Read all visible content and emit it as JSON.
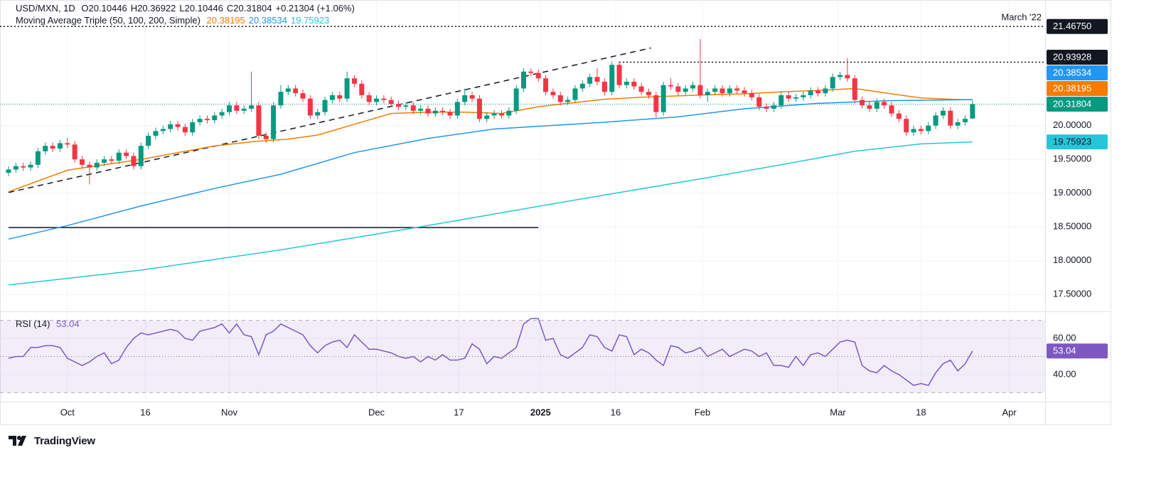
{
  "chart_data": [
    {
      "type": "candlestick",
      "symbol": "USD/MXN, 1D",
      "ohlc_keys": [
        "O",
        "H",
        "L",
        "C"
      ],
      "change": "+0.21304 (+1.06%)",
      "indicator": "Moving Average Triple (50, 100, 200, Simple)",
      "x": [
        0,
        1,
        2,
        3,
        4,
        5,
        6,
        7,
        8,
        9,
        10,
        11,
        12,
        13,
        14,
        15,
        16,
        17,
        18,
        19,
        20,
        21,
        22,
        23,
        24,
        25,
        26,
        27,
        28,
        29,
        30,
        31,
        32,
        33,
        34,
        35,
        36,
        37,
        38,
        39,
        40,
        41,
        42,
        43,
        44,
        45,
        46,
        47,
        48,
        49,
        50,
        51,
        52,
        53,
        54,
        55,
        56,
        57,
        58,
        59,
        60,
        61,
        62,
        63,
        64,
        65,
        66,
        67,
        68,
        69,
        70,
        71,
        72,
        73,
        74,
        75,
        76,
        77,
        78,
        79,
        80,
        81,
        82,
        83,
        84,
        85,
        86,
        87,
        88,
        89,
        90,
        91,
        92,
        93,
        94,
        95,
        96,
        97,
        98,
        99,
        100,
        101,
        102,
        103,
        104,
        105,
        106,
        107,
        108,
        109,
        110,
        111,
        112,
        113,
        114,
        115,
        116,
        117,
        118,
        119,
        120,
        121,
        122,
        123,
        124,
        125,
        126,
        127,
        128,
        129,
        130,
        131
      ],
      "open": [
        19.3,
        19.35,
        19.4,
        19.38,
        19.42,
        19.62,
        19.7,
        19.66,
        19.74,
        19.72,
        19.5,
        19.42,
        19.38,
        19.45,
        19.5,
        19.48,
        19.6,
        19.55,
        19.4,
        19.7,
        19.85,
        19.92,
        19.95,
        20.02,
        19.98,
        19.9,
        20.05,
        20.1,
        20.08,
        20.15,
        20.2,
        20.3,
        20.22,
        20.25,
        20.3,
        19.85,
        19.8,
        20.3,
        20.5,
        20.55,
        20.48,
        20.4,
        20.15,
        20.2,
        20.38,
        20.45,
        20.4,
        20.7,
        20.62,
        20.45,
        20.35,
        20.4,
        20.38,
        20.32,
        20.28,
        20.3,
        20.22,
        20.25,
        20.18,
        20.22,
        20.2,
        20.15,
        20.35,
        20.45,
        20.4,
        20.1,
        20.15,
        20.18,
        20.15,
        20.22,
        20.55,
        20.8,
        20.78,
        20.7,
        20.5,
        20.45,
        20.35,
        20.38,
        20.55,
        20.62,
        20.72,
        20.65,
        20.5,
        20.9,
        20.6,
        20.65,
        20.58,
        20.5,
        20.45,
        20.2,
        20.6,
        20.58,
        20.5,
        20.55,
        20.6,
        20.45,
        20.5,
        20.55,
        20.48,
        20.55,
        20.52,
        20.48,
        20.42,
        20.28,
        20.25,
        20.3,
        20.45,
        20.4,
        20.42,
        20.45,
        20.52,
        20.48,
        20.55,
        20.72,
        20.75,
        20.7,
        20.38,
        20.3,
        20.25,
        20.35,
        20.3,
        20.18,
        20.1,
        19.9,
        19.95,
        19.92,
        20.0,
        20.15,
        20.22,
        20.0,
        20.05,
        20.10446
      ],
      "high": [
        19.4,
        19.45,
        19.45,
        19.47,
        19.67,
        19.75,
        19.75,
        19.79,
        19.82,
        19.77,
        19.55,
        19.47,
        19.5,
        19.55,
        19.55,
        19.65,
        19.65,
        19.6,
        19.75,
        19.9,
        19.97,
        20.0,
        20.07,
        20.07,
        20.03,
        20.1,
        20.15,
        20.15,
        20.2,
        20.25,
        20.35,
        20.35,
        20.3,
        20.8,
        20.35,
        19.9,
        20.35,
        20.6,
        20.6,
        20.6,
        20.53,
        20.45,
        20.25,
        20.43,
        20.5,
        20.5,
        20.8,
        20.75,
        20.67,
        20.5,
        20.45,
        20.45,
        20.43,
        20.37,
        20.35,
        20.35,
        20.3,
        20.3,
        20.27,
        20.27,
        20.25,
        20.4,
        20.55,
        20.5,
        20.45,
        20.2,
        20.23,
        20.23,
        20.27,
        20.6,
        20.85,
        20.85,
        20.83,
        20.75,
        20.55,
        20.5,
        20.43,
        20.6,
        20.67,
        20.77,
        20.85,
        20.7,
        20.95,
        20.95,
        20.7,
        20.7,
        20.63,
        20.55,
        20.5,
        20.65,
        20.7,
        20.63,
        20.6,
        20.65,
        21.28,
        20.55,
        20.6,
        20.6,
        20.6,
        20.6,
        20.57,
        20.53,
        20.47,
        20.33,
        20.35,
        20.5,
        20.5,
        20.47,
        20.5,
        20.57,
        20.57,
        20.6,
        20.77,
        20.8,
        21.0,
        20.75,
        20.43,
        20.35,
        20.4,
        20.4,
        20.35,
        20.23,
        20.15,
        20.0,
        20.0,
        20.05,
        20.2,
        20.27,
        20.27,
        20.1,
        20.15,
        20.36922
      ],
      "low": [
        19.25,
        19.3,
        19.33,
        19.33,
        19.37,
        19.57,
        19.61,
        19.61,
        19.67,
        19.45,
        19.37,
        19.13,
        19.33,
        19.4,
        19.43,
        19.43,
        19.5,
        19.35,
        19.35,
        19.65,
        19.8,
        19.87,
        19.9,
        19.93,
        19.85,
        19.85,
        20.0,
        20.03,
        20.03,
        20.1,
        20.15,
        20.17,
        20.17,
        20.2,
        19.8,
        19.75,
        19.75,
        20.25,
        20.45,
        20.43,
        20.35,
        20.1,
        20.1,
        20.15,
        20.33,
        20.35,
        20.35,
        20.57,
        20.4,
        20.3,
        20.3,
        20.33,
        20.27,
        20.23,
        20.23,
        20.17,
        20.17,
        20.13,
        20.13,
        20.15,
        20.1,
        20.1,
        20.3,
        20.35,
        20.05,
        20.05,
        20.1,
        20.1,
        20.1,
        20.17,
        20.5,
        20.73,
        20.65,
        20.45,
        20.4,
        20.3,
        20.3,
        20.33,
        20.5,
        20.57,
        20.6,
        20.45,
        20.45,
        20.55,
        20.55,
        20.53,
        20.45,
        20.4,
        20.12,
        20.15,
        20.53,
        20.45,
        20.45,
        20.5,
        20.4,
        20.35,
        20.45,
        20.43,
        20.43,
        20.47,
        20.43,
        20.37,
        20.23,
        20.2,
        20.2,
        20.25,
        20.35,
        20.35,
        20.37,
        20.4,
        20.43,
        20.43,
        20.5,
        20.67,
        20.65,
        20.33,
        20.25,
        20.2,
        20.2,
        20.25,
        20.13,
        20.05,
        19.85,
        19.85,
        19.87,
        19.87,
        19.95,
        20.1,
        19.95,
        19.95,
        20.0,
        20.10446
      ],
      "close": [
        19.35,
        19.4,
        19.38,
        19.42,
        19.62,
        19.7,
        19.66,
        19.74,
        19.72,
        19.5,
        19.42,
        19.38,
        19.45,
        19.5,
        19.48,
        19.6,
        19.55,
        19.4,
        19.7,
        19.85,
        19.92,
        19.95,
        20.02,
        19.98,
        19.9,
        20.05,
        20.1,
        20.08,
        20.15,
        20.2,
        20.3,
        20.22,
        20.25,
        20.3,
        19.85,
        19.8,
        20.3,
        20.5,
        20.55,
        20.48,
        20.4,
        20.15,
        20.2,
        20.38,
        20.45,
        20.4,
        20.7,
        20.62,
        20.45,
        20.35,
        20.4,
        20.38,
        20.32,
        20.28,
        20.3,
        20.22,
        20.25,
        20.18,
        20.22,
        20.2,
        20.15,
        20.35,
        20.45,
        20.4,
        20.1,
        20.15,
        20.18,
        20.15,
        20.22,
        20.55,
        20.8,
        20.78,
        20.7,
        20.5,
        20.45,
        20.35,
        20.38,
        20.55,
        20.62,
        20.72,
        20.65,
        20.5,
        20.9,
        20.6,
        20.65,
        20.58,
        20.5,
        20.45,
        20.2,
        20.6,
        20.58,
        20.5,
        20.55,
        20.6,
        20.45,
        20.5,
        20.55,
        20.48,
        20.55,
        20.52,
        20.48,
        20.42,
        20.28,
        20.25,
        20.3,
        20.45,
        20.4,
        20.42,
        20.45,
        20.52,
        20.48,
        20.55,
        20.72,
        20.75,
        20.7,
        20.38,
        20.3,
        20.25,
        20.35,
        20.3,
        20.18,
        20.1,
        19.9,
        19.95,
        19.92,
        20.0,
        20.15,
        20.22,
        20.0,
        20.05,
        20.1,
        20.31804
      ],
      "up_color": "#089981",
      "down_color": "#f23645",
      "series": [
        {
          "color": "#f57c00",
          "x": [
            0,
            8,
            18,
            28,
            33,
            38,
            42,
            47,
            52,
            57,
            62,
            67,
            72,
            76,
            81,
            86,
            91,
            96,
            100,
            105,
            110,
            115,
            120,
            124,
            128,
            131
          ],
          "values": [
            19.02,
            19.34,
            19.5,
            19.7,
            19.76,
            19.8,
            19.86,
            20.02,
            20.18,
            20.2,
            20.2,
            20.18,
            20.28,
            20.33,
            20.39,
            20.42,
            20.44,
            20.46,
            20.47,
            20.5,
            20.52,
            20.55,
            20.47,
            20.41,
            20.39,
            20.38195
          ]
        },
        {
          "color": "#2196f3",
          "x": [
            0,
            8,
            18,
            28,
            37,
            47,
            57,
            66,
            72,
            81,
            91,
            100,
            110,
            120,
            131
          ],
          "values": [
            18.32,
            18.52,
            18.81,
            19.07,
            19.28,
            19.6,
            19.81,
            19.95,
            19.99,
            20.05,
            20.13,
            20.25,
            20.33,
            20.37,
            20.38534
          ]
        },
        {
          "color": "#26c6da",
          "x": [
            0,
            18,
            37,
            57,
            76,
            95,
            105,
            115,
            124,
            131
          ],
          "values": [
            17.64,
            17.86,
            18.16,
            18.52,
            18.88,
            19.23,
            19.42,
            19.62,
            19.73,
            19.75923
          ]
        }
      ],
      "trendline": {
        "x": [
          0,
          87.3
        ],
        "values": [
          19.01,
          21.15
        ]
      },
      "support_line": {
        "x": [
          0,
          72
        ],
        "value": 18.49
      },
      "levels": [
        {
          "value": 21.4675,
          "label": "21.46750",
          "annotation": "March '22"
        },
        {
          "value": 20.93928,
          "x_start": 83
        }
      ],
      "xlim": [
        -1.16,
        140.87
      ],
      "xticks": [
        {
          "value": 8,
          "label": "Oct"
        },
        {
          "value": 18.6,
          "label": "16"
        },
        {
          "value": 30,
          "label": "Nov"
        },
        {
          "value": 50,
          "label": "Dec"
        },
        {
          "value": 61.2,
          "label": "17"
        },
        {
          "value": 72.3,
          "label": "2025",
          "bold": true
        },
        {
          "value": 82.5,
          "label": "16"
        },
        {
          "value": 94.3,
          "label": "Feb"
        },
        {
          "value": 112.7,
          "label": "Mar"
        },
        {
          "value": 124,
          "label": "18"
        },
        {
          "value": 136,
          "label": "Apr"
        }
      ],
      "ylim": [
        17.26,
        21.86
      ],
      "yticks": [
        {
          "value": 17.5,
          "label": "17.50000"
        },
        {
          "value": 18,
          "label": "18.00000"
        },
        {
          "value": 18.5,
          "label": "18.50000"
        },
        {
          "value": 19,
          "label": "19.00000"
        },
        {
          "value": 19.5,
          "label": "19.50000"
        },
        {
          "value": 20,
          "label": "20.00000"
        }
      ],
      "grid": true
    },
    {
      "type": "line",
      "title": "RSI (14)",
      "color": "#7e57c2",
      "x": [
        0,
        1,
        2,
        3,
        4,
        5,
        6,
        7,
        8,
        9,
        10,
        11,
        12,
        13,
        14,
        15,
        16,
        17,
        18,
        19,
        20,
        21,
        22,
        23,
        24,
        25,
        26,
        27,
        28,
        29,
        30,
        31,
        32,
        33,
        34,
        35,
        36,
        37,
        38,
        39,
        40,
        41,
        42,
        43,
        44,
        45,
        46,
        47,
        48,
        49,
        50,
        51,
        52,
        53,
        54,
        55,
        56,
        57,
        58,
        59,
        60,
        61,
        62,
        63,
        64,
        65,
        66,
        67,
        68,
        69,
        70,
        71,
        72,
        73,
        74,
        75,
        76,
        77,
        78,
        79,
        80,
        81,
        82,
        83,
        84,
        85,
        86,
        87,
        88,
        89,
        90,
        91,
        92,
        93,
        94,
        95,
        96,
        97,
        98,
        99,
        100,
        101,
        102,
        103,
        104,
        105,
        106,
        107,
        108,
        109,
        110,
        111,
        112,
        113,
        114,
        115,
        116,
        117,
        118,
        119,
        120,
        121,
        122,
        123,
        124,
        125,
        126,
        127,
        128,
        129,
        130,
        131
      ],
      "values": [
        49,
        50,
        50,
        55,
        55,
        56,
        56,
        55,
        49,
        47,
        45,
        47,
        50,
        52,
        46,
        48,
        55,
        60,
        63,
        62,
        63,
        64,
        65,
        64,
        60,
        59,
        64,
        65,
        66,
        68,
        63,
        68,
        62,
        61,
        51,
        62,
        64,
        68,
        66,
        64,
        62,
        56,
        52,
        56,
        58,
        59,
        55,
        62,
        58,
        54,
        54,
        53,
        52,
        50,
        49,
        50,
        47,
        50,
        48,
        51,
        48,
        48,
        49,
        57,
        54,
        46,
        50,
        49,
        52,
        55,
        68,
        71,
        71,
        59,
        60,
        51,
        49,
        52,
        55,
        62,
        61,
        55,
        53,
        62,
        61,
        51,
        54,
        52,
        48,
        45,
        56,
        55,
        52,
        53,
        55,
        50,
        52,
        54,
        50,
        52,
        54,
        53,
        50,
        52,
        45,
        45,
        44,
        50,
        45,
        51,
        52,
        50,
        54,
        58,
        59,
        58,
        45,
        42,
        41,
        45,
        42,
        40,
        37,
        34,
        35,
        34,
        41,
        46,
        48,
        42,
        46,
        53.04
      ],
      "ylim": [
        25,
        73
      ],
      "yticks": [
        {
          "value": 60,
          "label": "60.00"
        },
        {
          "value": 40,
          "label": "40.00"
        }
      ],
      "band": [
        30,
        70
      ],
      "midline": 50
    }
  ],
  "footer": {
    "brand": "TradingView"
  }
}
